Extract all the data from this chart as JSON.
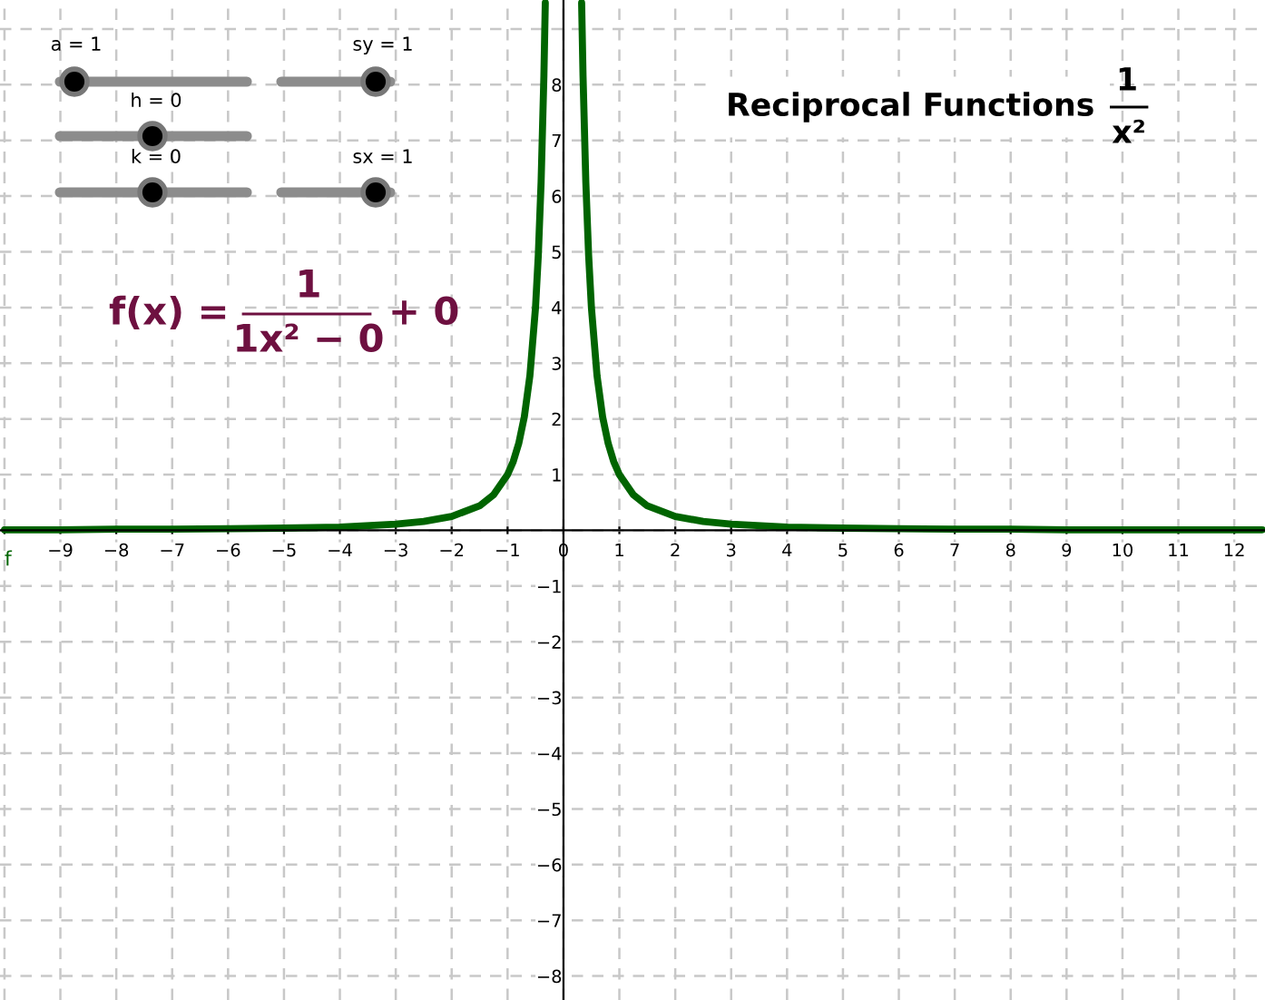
{
  "chart_data": {
    "type": "line",
    "title": "Reciprocal Functions",
    "annotations": [
      "a = 1",
      "h = 0",
      "k = 0",
      "sy = 1",
      "sx = 1",
      "1",
      "x²",
      "f(x) =",
      "1",
      "1x² − 0",
      "+ 0"
    ],
    "series": [
      {
        "name": "f",
        "color": "#006400",
        "x": [
          -10,
          -9,
          -8,
          -7,
          -6,
          -5,
          -4,
          -3,
          -2.5,
          -2,
          -1.5,
          -1.25,
          -1,
          -0.9,
          -0.8,
          -0.7,
          -0.6,
          -0.5,
          -0.45,
          -0.4,
          -0.35,
          -0.325
        ],
        "values": [
          0.01,
          0.01,
          0.02,
          0.02,
          0.03,
          0.04,
          0.06,
          0.11,
          0.16,
          0.25,
          0.44,
          0.64,
          1,
          1.23,
          1.56,
          2.04,
          2.78,
          4,
          4.94,
          6.25,
          8.16,
          9.47
        ]
      },
      {
        "color": "#006400",
        "x": [
          0.325,
          0.35,
          0.4,
          0.45,
          0.5,
          0.6,
          0.7,
          0.8,
          0.9,
          1,
          1.25,
          1.5,
          2,
          2.5,
          3,
          4,
          5,
          6,
          7,
          8,
          9,
          10,
          11,
          12,
          12.5
        ],
        "values": [
          9.47,
          8.16,
          6.25,
          4.94,
          4,
          2.78,
          2.04,
          1.56,
          1.23,
          1,
          0.64,
          0.44,
          0.25,
          0.16,
          0.11,
          0.06,
          0.04,
          0.03,
          0.02,
          0.02,
          0.01,
          0.01,
          0.01,
          0.01,
          0.01
        ]
      }
    ],
    "xlim": [
      -10.08,
      12.55
    ],
    "ylim": [
      -8.43,
      9.52
    ],
    "xticks": [
      {
        "value": -10,
        "label": null
      },
      -9,
      -8,
      -7,
      -6,
      -5,
      -4,
      -3,
      -2,
      -1,
      0,
      1,
      2,
      3,
      4,
      5,
      6,
      7,
      8,
      9,
      10,
      11,
      12
    ],
    "yticks": [
      -8,
      -7,
      -6,
      -5,
      -4,
      -3,
      -2,
      -1,
      {
        "value": 0,
        "label": null
      },
      1,
      2,
      3,
      4,
      5,
      6,
      7,
      8,
      {
        "value": 9,
        "label": null
      }
    ],
    "grid": true,
    "line_style": "solid",
    "marker": "none",
    "legend": false
  }
}
